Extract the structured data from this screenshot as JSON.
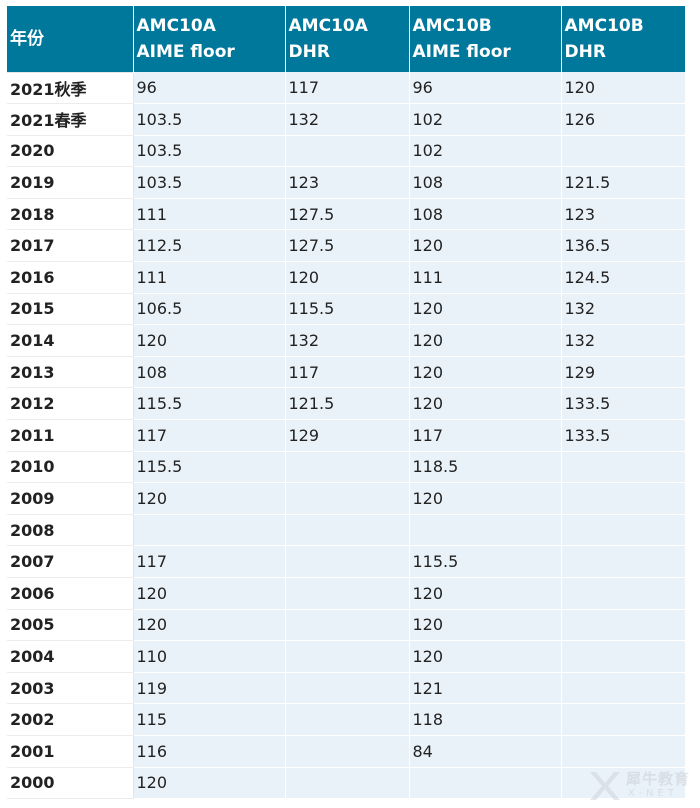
{
  "table": {
    "headers": [
      {
        "line1": "年份",
        "line2": ""
      },
      {
        "line1": "AMC10A",
        "line2": "AIME floor"
      },
      {
        "line1": "AMC10A",
        "line2": "DHR"
      },
      {
        "line1": "AMC10B",
        "line2": "AIME floor"
      },
      {
        "line1": "AMC10B",
        "line2": "DHR"
      }
    ],
    "rows": [
      [
        "2021秋季",
        "96",
        "117",
        "96",
        "120"
      ],
      [
        "2021春季",
        "103.5",
        "132",
        "102",
        "126"
      ],
      [
        "2020",
        "103.5",
        "",
        "102",
        ""
      ],
      [
        "2019",
        "103.5",
        "123",
        "108",
        "121.5"
      ],
      [
        "2018",
        "111",
        "127.5",
        "108",
        "123"
      ],
      [
        "2017",
        "112.5",
        "127.5",
        "120",
        "136.5"
      ],
      [
        "2016",
        "111",
        "120",
        "111",
        "124.5"
      ],
      [
        "2015",
        "106.5",
        "115.5",
        "120",
        "132"
      ],
      [
        "2014",
        "120",
        "132",
        "120",
        "132"
      ],
      [
        "2013",
        "108",
        "117",
        "120",
        "129"
      ],
      [
        "2012",
        "115.5",
        "121.5",
        "120",
        "133.5"
      ],
      [
        "2011",
        "117",
        "129",
        "117",
        "133.5"
      ],
      [
        "2010",
        "115.5",
        "",
        "118.5",
        ""
      ],
      [
        "2009",
        "120",
        "",
        "120",
        ""
      ],
      [
        "2008",
        "",
        "",
        "",
        ""
      ],
      [
        "2007",
        "117",
        "",
        "115.5",
        ""
      ],
      [
        "2006",
        "120",
        "",
        "120",
        ""
      ],
      [
        "2005",
        "120",
        "",
        "120",
        ""
      ],
      [
        "2004",
        "110",
        "",
        "120",
        ""
      ],
      [
        "2003",
        "119",
        "",
        "121",
        ""
      ],
      [
        "2002",
        "115",
        "",
        "118",
        ""
      ],
      [
        "2001",
        "116",
        "",
        "84",
        ""
      ],
      [
        "2000",
        "120",
        "",
        "",
        ""
      ]
    ]
  },
  "watermark": {
    "text1": "犀牛教育",
    "text2": "X-NET"
  },
  "colors": {
    "header_bg": "#00789b",
    "cell_bg": "#eaf2f9"
  }
}
